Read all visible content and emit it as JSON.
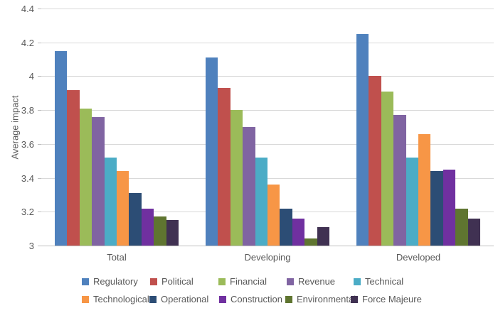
{
  "chart_data": {
    "type": "bar",
    "title": "",
    "xlabel": "",
    "ylabel": "Average impact",
    "ylim": [
      3,
      4.4
    ],
    "ytick_labels": [
      "3",
      "3.2",
      "3.4",
      "3.6",
      "3.8",
      "4",
      "4.2",
      "4.4"
    ],
    "ytick_values": [
      3,
      3.2,
      3.4,
      3.6,
      3.8,
      4,
      4.2,
      4.4
    ],
    "grid": true,
    "legend_position": "bottom",
    "legend_rows": [
      [
        "Regulatory",
        "Political",
        "Financial",
        "Revenue",
        "Technical"
      ],
      [
        "Technological",
        "Operational",
        "Construction",
        "Environmental",
        "Force Majeure"
      ]
    ],
    "categories": [
      "Total",
      "Developing",
      "Developed"
    ],
    "series": [
      {
        "name": "Regulatory",
        "color": "#4F81BD",
        "values": [
          4.15,
          4.11,
          4.25
        ]
      },
      {
        "name": "Political",
        "color": "#C0504D",
        "values": [
          3.92,
          3.93,
          4.0
        ]
      },
      {
        "name": "Financial",
        "color": "#9BBB59",
        "values": [
          3.81,
          3.8,
          3.91
        ]
      },
      {
        "name": "Revenue",
        "color": "#8064A2",
        "values": [
          3.76,
          3.7,
          3.77
        ]
      },
      {
        "name": "Technical",
        "color": "#4BACC6",
        "values": [
          3.52,
          3.52,
          3.52
        ]
      },
      {
        "name": "Technological",
        "color": "#F79646",
        "values": [
          3.44,
          3.36,
          3.66
        ]
      },
      {
        "name": "Operational",
        "color": "#2C4D75",
        "values": [
          3.31,
          3.22,
          3.44
        ]
      },
      {
        "name": "Construction",
        "color": "#7030A0",
        "values": [
          3.22,
          3.16,
          3.45
        ]
      },
      {
        "name": "Environmental",
        "color": "#5F7530",
        "values": [
          3.17,
          3.04,
          3.22
        ]
      },
      {
        "name": "Force Majeure",
        "color": "#403152",
        "values": [
          3.15,
          3.11,
          3.16
        ]
      }
    ]
  },
  "colors": {
    "text": "#595959",
    "gridline": "#D9D9D9",
    "axis_line": "#BFBFBF",
    "background": "#FFFFFF"
  }
}
